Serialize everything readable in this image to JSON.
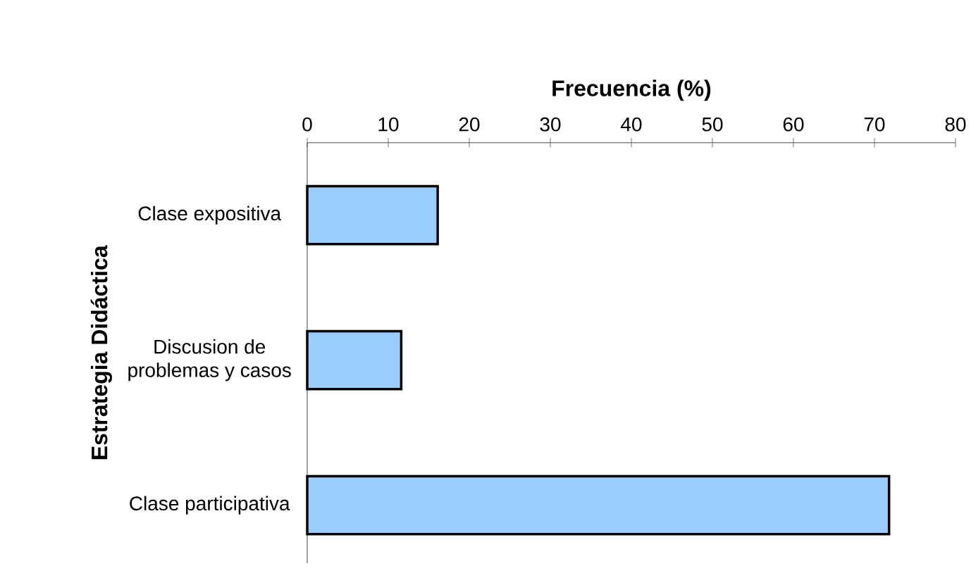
{
  "chart_data": {
    "type": "bar",
    "orientation": "horizontal",
    "xlabel": "Frecuencia (%)",
    "ylabel": "Estrategia Didáctica",
    "categories": [
      "Clase expositiva",
      "Discusion de problemas y casos",
      "Clase participativa"
    ],
    "values": [
      16.1,
      11.6,
      71.8
    ],
    "color": "#99ccff",
    "xlim": [
      0,
      80
    ],
    "xticks": [
      0,
      10,
      20,
      30,
      40,
      50,
      60,
      70,
      80
    ],
    "grid": false
  }
}
